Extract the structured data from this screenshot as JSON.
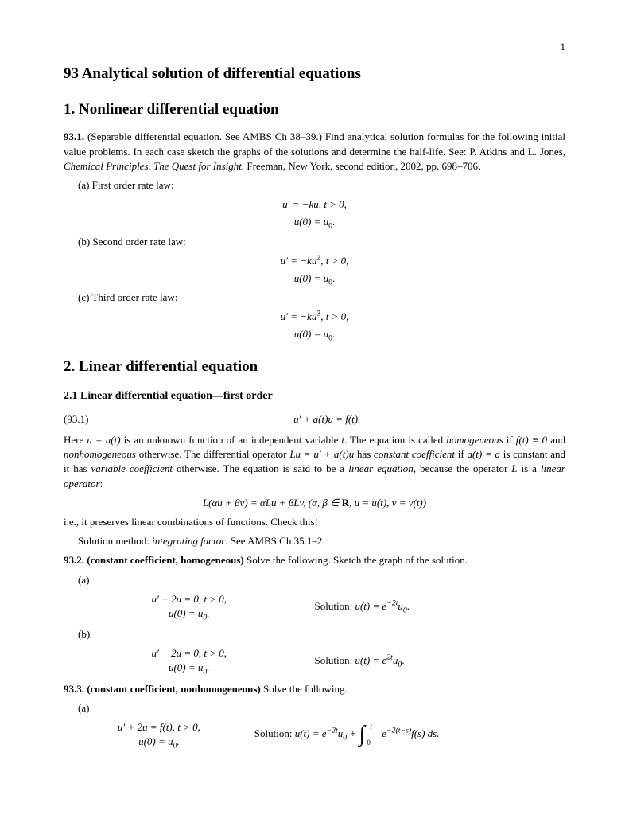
{
  "page_number": "1",
  "title_main": "93 Analytical solution of differential equations",
  "section1": {
    "heading": "1. Nonlinear differential equation",
    "p93_1_label": "93.1.",
    "p93_1_text": " (Separable differential equation. See AMBS Ch 38–39.) Find analytical solution formulas for the following initial value problems. In each case sketch the graphs of the solutions and determine the half-life. See: P. Atkins and L. Jones, ",
    "p93_1_citation": "Chemical Principles. The Quest for Insight.",
    "p93_1_tail": " Freeman, New York, second edition, 2002, pp. 698–706.",
    "a_label": "(a) First order rate law:",
    "a_eq1": "u′ = −ku,    t > 0,",
    "a_eq2": "u(0) = u",
    "b_label": "(b) Second order rate law:",
    "b_eq1_pre": "u′ = −ku",
    "b_eq1_exp": "2",
    "b_eq1_post": ",    t > 0,",
    "b_eq2": "u(0) = u",
    "c_label": "(c) Third order rate law:",
    "c_eq1_pre": "u′ = −ku",
    "c_eq1_exp": "3",
    "c_eq1_post": ",    t > 0,",
    "c_eq2": "u(0) = u",
    "sub0": "0",
    "dot": "."
  },
  "section2": {
    "heading": "2. Linear differential equation",
    "subheading": "2.1 Linear differential equation—first order",
    "eq_num": "(93.1)",
    "eq_body": "u′ + a(t)u = f(t).",
    "para1_a": "Here ",
    "para1_b": "u = u(t)",
    "para1_c": " is an unknown function of an independent variable ",
    "para1_d": "t",
    "para1_e": ". The equation is called ",
    "para1_f": "homogeneous",
    "para1_g": " if ",
    "para1_h": "f(t) ≡ 0",
    "para1_i": " and ",
    "para1_j": "nonhomogeneous",
    "para1_k": " otherwise. The differential operator ",
    "para1_l": "Lu = u′ + a(t)u",
    "para1_m": " has ",
    "para1_n": "constant coefficient",
    "para1_o": " if ",
    "para1_p": "a(t) = a",
    "para1_q": " is constant and it has ",
    "para1_r": "variable coefficient",
    "para1_s": " otherwise. The equation is said to be a ",
    "para1_t": "linear equation",
    "para1_u": ", because the operator ",
    "para1_v": "L",
    "para1_w": " is a ",
    "para1_x": "linear operator",
    "para1_y": ":",
    "lin_eq_a": "L(αu + βv) = αLu + βLv,    (α, β ∈ ",
    "lin_eq_b": "R",
    "lin_eq_c": ",  u = u(t),  v = v(t))",
    "para2": "i.e., it preserves linear combinations of functions. Check this!",
    "para3_a": "Solution method: ",
    "para3_b": "integrating factor",
    "para3_c": ". See AMBS Ch 35.1–2.",
    "p93_2_label": "93.2. (constant coefficient, homogeneous)",
    "p93_2_text": " Solve the following. Sketch the graph of the solution.",
    "a2_label": "(a)",
    "a2_eq1": "u′ + 2u = 0,    t > 0,",
    "a2_eq2": "u(0) = u",
    "a2_sol_label": "Solution: ",
    "a2_sol_pre": "u(t) = e",
    "a2_sol_exp": "−2t",
    "a2_sol_post": "u",
    "b2_label": "(b)",
    "b2_eq1": "u′ − 2u = 0,    t > 0,",
    "b2_eq2": "u(0) = u",
    "b2_sol_pre": "u(t) = e",
    "b2_sol_exp": "2t",
    "b2_sol_post": "u",
    "p93_3_label": "93.3. (constant coefficient, nonhomogeneous)",
    "p93_3_text": " Solve the following.",
    "a3_label": "(a)",
    "a3_eq1": "u′ + 2u = f(t),    t > 0,",
    "a3_eq2": "u(0) = u",
    "a3_sol_pre": "u(t) = e",
    "a3_sol_exp1": "−2t",
    "a3_sol_mid1": "u",
    "a3_sol_plus": " + ",
    "a3_int_upper": "t",
    "a3_int_lower": "0",
    "a3_sol_e2": " e",
    "a3_sol_exp2": "−2(t−s)",
    "a3_sol_tail": "f(s) ds."
  }
}
